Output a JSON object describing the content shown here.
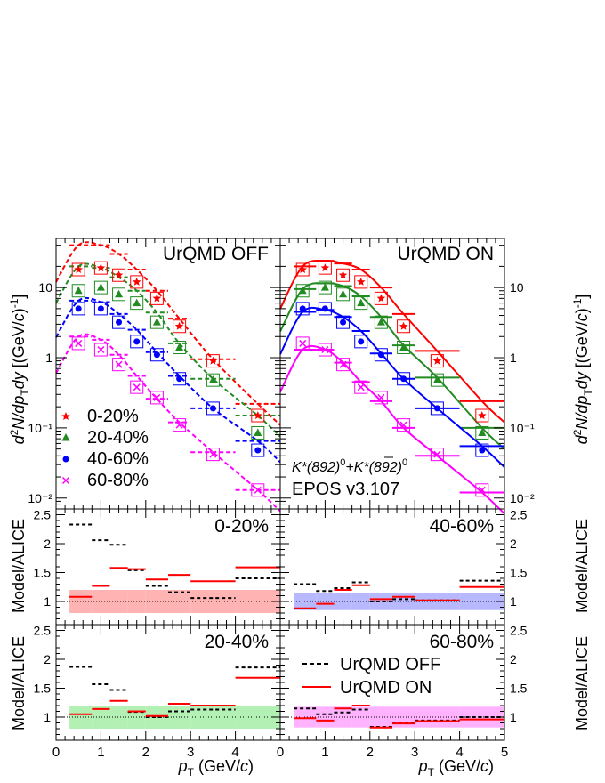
{
  "figure": {
    "label_top_left": "UrQMD OFF",
    "label_top_right": "UrQMD ON",
    "particle_label": "K*(892)⁰+K̄*(892)⁰",
    "particle_main": "K*(892)",
    "particle_mid": "+K",
    "particle_tail": "*(892)",
    "particle_sup": "0",
    "model_label": "EPOS v3.107",
    "ylabel_top": "d²N/dp_T dy [(GeV/c)⁻¹]",
    "ylabel_ratio": "Model/ALICE",
    "xlabel": "p_T (GeV/c)",
    "xlabel_p": "p",
    "xlabel_sub": "T",
    "xlabel_unit": " (GeV/c)",
    "yl_d": "d",
    "yl_2": "2",
    "yl_N": "N/dp",
    "yl_T": "T",
    "yl_dy": "dy [(GeV/",
    "yl_c": "c",
    "yl_close": ")",
    "yl_m1": "-1",
    "yl_end": "]"
  },
  "colors": {
    "0-20%": "#ff0000",
    "20-40%": "#228b22",
    "40-60%": "#0000ff",
    "60-80%": "#ff00ff",
    "band_0-20%": "#ffb3b3",
    "band_20-40%": "#b3f0b3",
    "band_40-60%": "#b8b8ff",
    "band_60-80%": "#ffb3ff"
  },
  "legend_centrality": [
    {
      "label": "0-20%",
      "marker": "star"
    },
    {
      "label": "20-40%",
      "marker": "triangle"
    },
    {
      "label": "40-60%",
      "marker": "circle"
    },
    {
      "label": "60-80%",
      "marker": "cross"
    }
  ],
  "legend_model": [
    {
      "label": "UrQMD OFF",
      "style": "dashed"
    },
    {
      "label": "UrQMD ON",
      "style": "solid"
    }
  ],
  "chart_data": [
    {
      "type": "scatter",
      "panel": "spectra-urqmd-off",
      "title": "UrQMD OFF",
      "xlim": [
        0,
        5
      ],
      "ylim": [
        0.007,
        50
      ],
      "yscale": "log",
      "x_ticks": [
        0,
        1,
        2,
        3,
        4
      ],
      "y_ticks": [
        0.01,
        0.1,
        1,
        10
      ],
      "y_tick_labels": [
        "10⁻²",
        "10⁻¹",
        "1",
        "10"
      ],
      "x": [
        0.5,
        1.0,
        1.4,
        1.8,
        2.25,
        2.75,
        3.5,
        4.5
      ],
      "series": [
        {
          "name": "0-20%",
          "data": [
            18,
            19,
            15,
            12,
            7,
            2.8,
            0.9,
            0.15
          ],
          "model": [
            40,
            40,
            30,
            18,
            9,
            3.6,
            0.95,
            0.22
          ]
        },
        {
          "name": "20-40%",
          "data": [
            9,
            10,
            8,
            6,
            3.2,
            1.4,
            0.48,
            0.085
          ],
          "model": [
            20,
            19,
            14,
            9,
            4.4,
            1.6,
            0.5,
            0.15
          ]
        },
        {
          "name": "40-60%",
          "data": [
            5,
            5,
            3.2,
            1.7,
            1.1,
            0.5,
            0.19,
            0.048
          ],
          "model": [
            6.5,
            6.2,
            4.2,
            2.5,
            1.2,
            0.55,
            0.19,
            0.065
          ]
        },
        {
          "name": "60-80%",
          "data": [
            1.6,
            1.3,
            0.8,
            0.38,
            0.27,
            0.11,
            0.042,
            0.013
          ],
          "model": [
            2.0,
            1.8,
            1.1,
            0.55,
            0.26,
            0.12,
            0.045,
            0.013
          ]
        }
      ]
    },
    {
      "type": "scatter",
      "panel": "spectra-urqmd-on",
      "title": "UrQMD ON",
      "xlim": [
        0,
        5
      ],
      "ylim": [
        0.007,
        50
      ],
      "yscale": "log",
      "x_ticks": [
        0,
        1,
        2,
        3,
        4,
        5
      ],
      "y_ticks": [
        0.01,
        0.1,
        1,
        10
      ],
      "y_tick_labels": [
        "10⁻²",
        "10⁻¹",
        "1",
        "10"
      ],
      "x": [
        0.5,
        1.0,
        1.4,
        1.8,
        2.25,
        2.75,
        3.5,
        4.5
      ],
      "series": [
        {
          "name": "0-20%",
          "data": [
            18,
            19,
            15,
            12,
            7,
            2.8,
            0.9,
            0.15
          ],
          "model": [
            20,
            24,
            22,
            18,
            10,
            4.2,
            1.25,
            0.24
          ]
        },
        {
          "name": "20-40%",
          "data": [
            9,
            10,
            8,
            6,
            3.2,
            1.4,
            0.48,
            0.085
          ],
          "model": [
            9.5,
            11.5,
            10.5,
            7.5,
            3.8,
            1.5,
            0.52,
            0.1
          ]
        },
        {
          "name": "40-60%",
          "data": [
            5,
            5,
            3.2,
            1.7,
            1.1,
            0.5,
            0.19,
            0.048
          ],
          "model": [
            4.5,
            4.8,
            3.8,
            2.4,
            1.15,
            0.5,
            0.19,
            0.055
          ]
        },
        {
          "name": "60-80%",
          "data": [
            1.6,
            1.3,
            0.8,
            0.38,
            0.27,
            0.11,
            0.042,
            0.013
          ],
          "model": [
            1.3,
            1.3,
            0.85,
            0.45,
            0.24,
            0.1,
            0.04,
            0.012
          ]
        }
      ]
    },
    {
      "type": "line",
      "panel": "ratio-0-20",
      "title": "0-20%",
      "xlim": [
        0,
        5
      ],
      "ylim": [
        0.6,
        2.6
      ],
      "y_ticks": [
        1,
        1.5,
        2,
        2.5
      ],
      "y_tick_labels": [
        "1",
        "1.5",
        "2",
        "2.5"
      ],
      "bins": [
        [
          0.3,
          0.8
        ],
        [
          0.8,
          1.2
        ],
        [
          1.2,
          1.6
        ],
        [
          1.6,
          2.0
        ],
        [
          2.0,
          2.5
        ],
        [
          2.5,
          3.0
        ],
        [
          3.0,
          4.0
        ],
        [
          4.0,
          5.0
        ]
      ],
      "series": [
        {
          "name": "UrQMD OFF",
          "values": [
            2.33,
            2.06,
            1.98,
            1.54,
            1.27,
            1.16,
            1.06,
            1.4
          ]
        },
        {
          "name": "UrQMD ON",
          "values": [
            1.08,
            1.27,
            1.58,
            1.56,
            1.38,
            1.46,
            1.35,
            1.59
          ]
        }
      ],
      "band": [
        0.2,
        0.2,
        0.2,
        0.2,
        0.2,
        0.2,
        0.2,
        0.2
      ]
    },
    {
      "type": "line",
      "panel": "ratio-40-60",
      "title": "40-60%",
      "xlim": [
        0,
        5
      ],
      "ylim": [
        0.6,
        2.6
      ],
      "y_ticks": [
        1,
        1.5,
        2,
        2.5
      ],
      "y_tick_labels": [
        "1",
        "1.5",
        "2",
        "2.5"
      ],
      "bins": [
        [
          0.3,
          0.8
        ],
        [
          0.8,
          1.2
        ],
        [
          1.2,
          1.6
        ],
        [
          1.6,
          2.0
        ],
        [
          2.0,
          2.5
        ],
        [
          2.5,
          3.0
        ],
        [
          3.0,
          4.0
        ],
        [
          4.0,
          5.0
        ]
      ],
      "series": [
        {
          "name": "UrQMD OFF",
          "values": [
            1.3,
            1.18,
            1.23,
            1.33,
            1.0,
            1.04,
            1.02,
            1.36
          ]
        },
        {
          "name": "UrQMD ON",
          "values": [
            0.88,
            0.96,
            1.2,
            1.28,
            1.04,
            1.08,
            1.02,
            1.25
          ]
        }
      ],
      "band": [
        0.15,
        0.15,
        0.15,
        0.15,
        0.15,
        0.15,
        0.15,
        0.15
      ]
    },
    {
      "type": "line",
      "panel": "ratio-20-40",
      "title": "20-40%",
      "xlim": [
        0,
        5
      ],
      "ylim": [
        0.6,
        2.6
      ],
      "y_ticks": [
        1,
        1.5,
        2,
        2.5
      ],
      "y_tick_labels": [
        "1",
        "1.5",
        "2",
        "2.5"
      ],
      "bins": [
        [
          0.3,
          0.8
        ],
        [
          0.8,
          1.2
        ],
        [
          1.2,
          1.6
        ],
        [
          1.6,
          2.0
        ],
        [
          2.0,
          2.5
        ],
        [
          2.5,
          3.0
        ],
        [
          3.0,
          4.0
        ],
        [
          4.0,
          5.0
        ]
      ],
      "series": [
        {
          "name": "UrQMD OFF",
          "values": [
            1.87,
            1.57,
            1.47,
            1.09,
            1.0,
            1.1,
            1.13,
            1.86
          ]
        },
        {
          "name": "UrQMD ON",
          "values": [
            1.05,
            1.14,
            1.28,
            1.1,
            1.02,
            1.23,
            1.2,
            1.68
          ]
        }
      ],
      "band": [
        0.2,
        0.2,
        0.2,
        0.2,
        0.2,
        0.2,
        0.2,
        0.2
      ]
    },
    {
      "type": "line",
      "panel": "ratio-60-80",
      "title": "60-80%",
      "xlim": [
        0,
        5
      ],
      "ylim": [
        0.6,
        2.6
      ],
      "x_ticks": [
        0,
        1,
        2,
        3,
        4,
        5
      ],
      "y_ticks": [
        1,
        1.5,
        2,
        2.5
      ],
      "y_tick_labels": [
        "1",
        "1.5",
        "2",
        "2.5"
      ],
      "bins": [
        [
          0.3,
          0.8
        ],
        [
          0.8,
          1.2
        ],
        [
          1.2,
          1.6
        ],
        [
          1.6,
          2.0
        ],
        [
          2.0,
          2.5
        ],
        [
          2.5,
          3.0
        ],
        [
          3.0,
          4.0
        ],
        [
          4.0,
          5.0
        ]
      ],
      "series": [
        {
          "name": "UrQMD OFF",
          "values": [
            1.15,
            1.05,
            1.08,
            1.13,
            0.83,
            0.9,
            0.94,
            1.0
          ]
        },
        {
          "name": "UrQMD ON",
          "values": [
            0.98,
            0.94,
            1.15,
            1.2,
            0.82,
            0.89,
            0.93,
            0.96
          ]
        }
      ],
      "band": [
        0.18,
        0.18,
        0.18,
        0.18,
        0.18,
        0.18,
        0.18,
        0.18
      ]
    }
  ]
}
